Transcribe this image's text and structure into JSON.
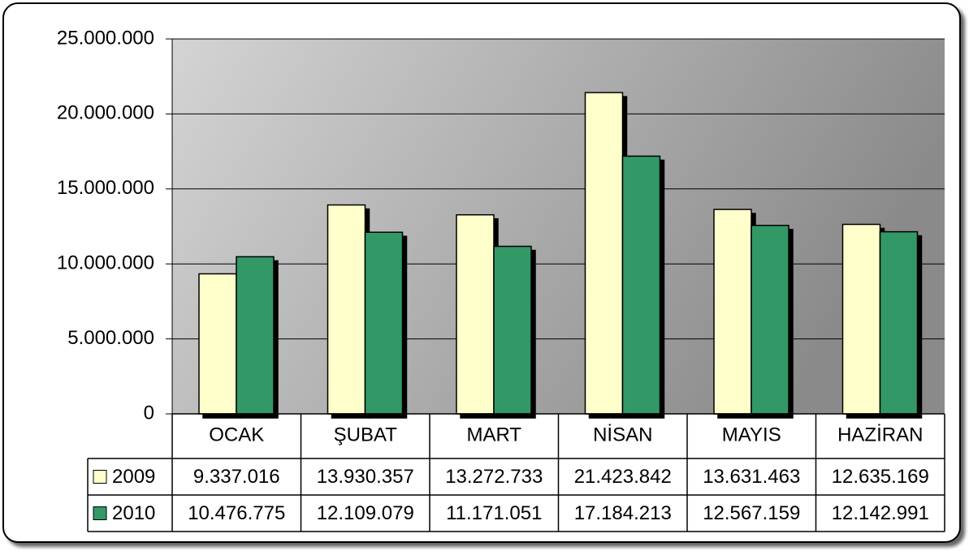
{
  "chart_data": {
    "type": "bar",
    "categories": [
      "OCAK",
      "ŞUBAT",
      "MART",
      "NİSAN",
      "MAYIS",
      "HAZİRAN"
    ],
    "series": [
      {
        "name": "2009",
        "color": "#ffffcc",
        "values": [
          9337016,
          13930357,
          13272733,
          21423842,
          13631463,
          12635169
        ],
        "value_labels": [
          "9.337.016",
          "13.930.357",
          "13.272.733",
          "21.423.842",
          "13.631.463",
          "12.635.169"
        ]
      },
      {
        "name": "2010",
        "color": "#339966",
        "values": [
          10476775,
          12109079,
          11171051,
          17184213,
          12567159,
          12142991
        ],
        "value_labels": [
          "10.476.775",
          "12.109.079",
          "11.171.051",
          "17.184.213",
          "12.567.159",
          "12.142.991"
        ]
      }
    ],
    "ylim": [
      0,
      25000000
    ],
    "yticks": [
      0,
      {
        "value": 5000000,
        "label": "5.000.000"
      },
      {
        "value": 10000000,
        "label": "10.000.000"
      },
      {
        "value": 15000000,
        "label": "15.000.000"
      },
      {
        "value": 20000000,
        "label": "20.000.000"
      },
      {
        "value": 25000000,
        "label": "25.000.000"
      }
    ],
    "grid": true
  }
}
